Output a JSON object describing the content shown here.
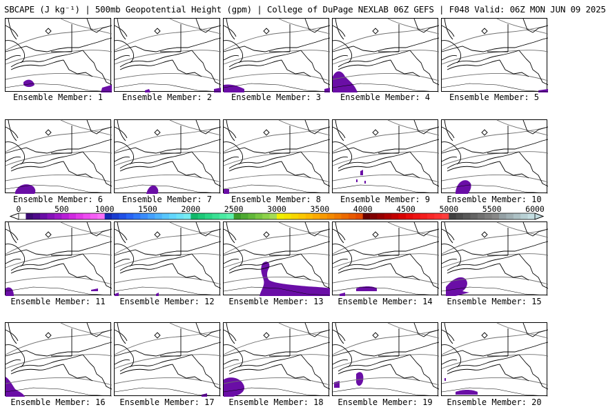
{
  "header": {
    "title": "SBCAPE (J kg⁻¹) | 500mb Geopotential Height (gpm) | College of DuPage NEXLAB 06Z GEFS | F048 Valid: 06Z MON JUN 09 2025"
  },
  "members": [
    {
      "label": "Ensemble Member: 1"
    },
    {
      "label": "Ensemble Member: 2"
    },
    {
      "label": "Ensemble Member: 3"
    },
    {
      "label": "Ensemble Member: 4"
    },
    {
      "label": "Ensemble Member: 5"
    },
    {
      "label": "Ensemble Member: 6"
    },
    {
      "label": "Ensemble Member: 7"
    },
    {
      "label": "Ensemble Member: 8"
    },
    {
      "label": "Ensemble Member: 9"
    },
    {
      "label": "Ensemble Member: 10"
    },
    {
      "label": "Ensemble Member: 11"
    },
    {
      "label": "Ensemble Member: 12"
    },
    {
      "label": "Ensemble Member: 13"
    },
    {
      "label": "Ensemble Member: 14"
    },
    {
      "label": "Ensemble Member: 15"
    },
    {
      "label": "Ensemble Member: 16"
    },
    {
      "label": "Ensemble Member: 17"
    },
    {
      "label": "Ensemble Member: 18"
    },
    {
      "label": "Ensemble Member: 19"
    },
    {
      "label": "Ensemble Member: 20"
    }
  ],
  "colorbar": {
    "ticks": [
      "0",
      "500",
      "1000",
      "1500",
      "2000",
      "2500",
      "3000",
      "3500",
      "4000",
      "4500",
      "5000",
      "5500",
      "6000"
    ],
    "colors": [
      "#ffffff",
      "#3b0a73",
      "#4f0b8a",
      "#6a0ea6",
      "#8412b8",
      "#9e18c8",
      "#b81ed6",
      "#cf2ae0",
      "#e13ae8",
      "#ee4cf0",
      "#f55ef4",
      "#fb70f8",
      "#1428b4",
      "#1a3cd0",
      "#2050e6",
      "#2864f4",
      "#3078f8",
      "#3a8cfa",
      "#44a0fc",
      "#4eb4fc",
      "#58c6fc",
      "#62d6fc",
      "#6ce2f8",
      "#76ecf2",
      "#12b86a",
      "#1ec878",
      "#2ad686",
      "#3ae094",
      "#4aeaa2",
      "#5cf2ae",
      "#3c9a2a",
      "#4eaa32",
      "#62b83a",
      "#78c642",
      "#8ed24a",
      "#a4dc54",
      "#f0f000",
      "#f4e400",
      "#f8d600",
      "#fcc800",
      "#fcba00",
      "#fcaa00",
      "#f89a00",
      "#f48a00",
      "#f07a00",
      "#ec6a00",
      "#e85a00",
      "#e44a00",
      "#6a0000",
      "#800000",
      "#960000",
      "#ac0000",
      "#c20000",
      "#d80000",
      "#e60a0a",
      "#ee1414",
      "#f41e1e",
      "#f82828",
      "#fc3232",
      "#ff3c3c",
      "#404040",
      "#4c4c4c",
      "#585858",
      "#646464",
      "#707070",
      "#7c7c7c",
      "#888888",
      "#94a0a4",
      "#a0b0b4",
      "#acc0c4",
      "#b8d0d4",
      "#c4dee2"
    ]
  }
}
